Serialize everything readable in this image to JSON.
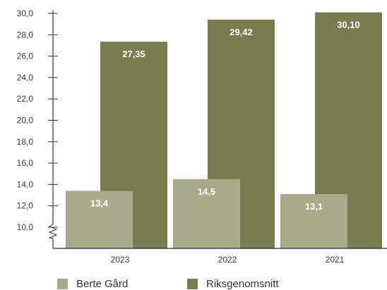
{
  "chart_data": {
    "type": "bar",
    "categories": [
      "2023",
      "2022",
      "2021"
    ],
    "series": [
      {
        "name": "Berte Gård",
        "values": [
          13.4,
          14.5,
          13.1
        ],
        "labels": [
          "13,4",
          "14,5",
          "13,1"
        ],
        "color": "#aaa98a"
      },
      {
        "name": "Riksgenomsnitt",
        "values": [
          27.35,
          29.42,
          30.1
        ],
        "labels": [
          "27,35",
          "29,42",
          "30,10"
        ],
        "color": "#787c4f"
      }
    ],
    "ylim": [
      8.0,
      30.0
    ],
    "y_ticks": [
      "10,0",
      "12,0",
      "14,0",
      "16,0",
      "18,0",
      "20,0",
      "22,0",
      "24,0",
      "26,0",
      "28,0",
      "30,0"
    ],
    "y_tick_values": [
      10,
      12,
      14,
      16,
      18,
      20,
      22,
      24,
      26,
      28,
      30
    ],
    "axis_break": true,
    "title": "",
    "xlabel": "",
    "ylabel": "",
    "legend_position": "bottom-left"
  }
}
